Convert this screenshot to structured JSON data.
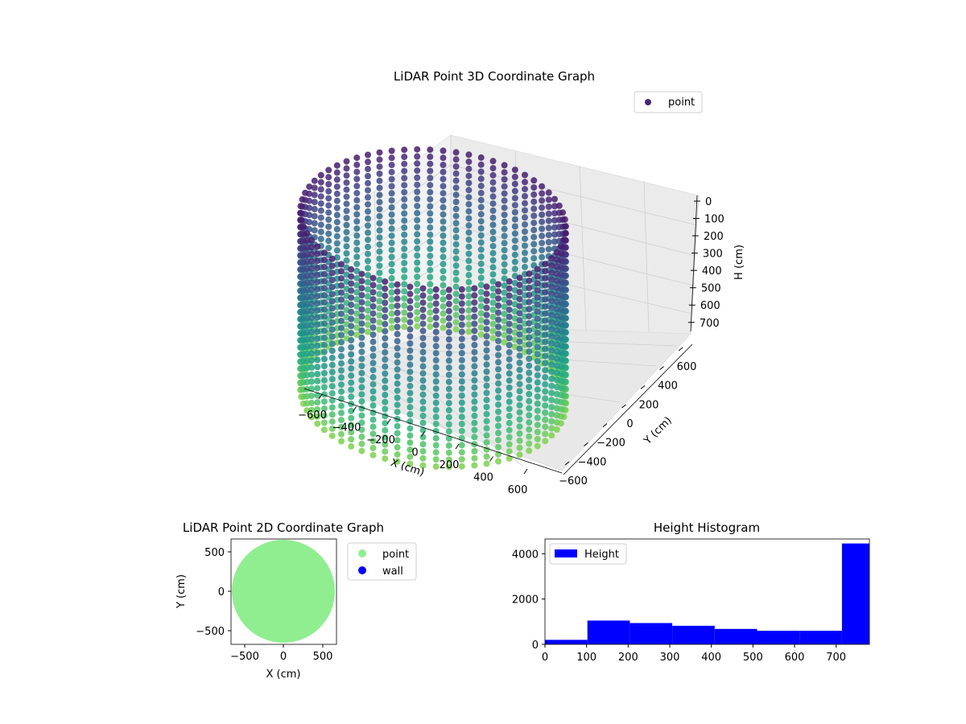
{
  "figure": {
    "title_3d": "LiDAR Point 3D Coordinate Graph",
    "title_2d": "LiDAR Point 2D Coordinate Graph",
    "title_hist": "Height Histogram"
  },
  "chart_data": [
    {
      "type": "scatter3d",
      "title": "LiDAR Point 3D Coordinate Graph",
      "xlabel": "X (cm)",
      "ylabel": "Y (cm)",
      "zlabel": "H (cm)",
      "x_ticks": [
        "−600",
        "−400",
        "−200",
        "0",
        "200",
        "400",
        "600"
      ],
      "y_ticks": [
        "−600",
        "−400",
        "−200",
        "0",
        "200",
        "400",
        "600"
      ],
      "z_ticks": [
        "0",
        "100",
        "200",
        "300",
        "400",
        "500",
        "600",
        "700"
      ],
      "xlim": [
        -650,
        650
      ],
      "ylim": [
        -650,
        650
      ],
      "zlim": [
        0,
        780
      ],
      "z_inverted": true,
      "legend": [
        {
          "label": "point",
          "color": "#482677"
        }
      ],
      "legend_position": "upper-right",
      "colormap": "viridis",
      "shape": "cylinder",
      "radius": 620,
      "height_range": [
        0,
        780
      ],
      "grid": true
    },
    {
      "type": "scatter",
      "title": "LiDAR Point 2D Coordinate Graph",
      "xlabel": "X (cm)",
      "ylabel": "Y (cm)",
      "x_ticks": [
        "−500",
        "0",
        "500"
      ],
      "y_ticks": [
        "500",
        "0",
        "−500"
      ],
      "xlim": [
        -680,
        680
      ],
      "ylim": [
        -680,
        680
      ],
      "series": [
        {
          "name": "point",
          "color": "#90ee90",
          "shape": "disk",
          "radius": 620
        },
        {
          "name": "wall",
          "color": "#0000ff",
          "values": []
        }
      ],
      "legend_position": "outside-right"
    },
    {
      "type": "bar",
      "title": "Height Histogram",
      "xlabel": "",
      "ylabel": "",
      "x_ticks": [
        "0",
        "100",
        "200",
        "300",
        "400",
        "500",
        "600",
        "700"
      ],
      "y_ticks": [
        "0",
        "2000",
        "4000"
      ],
      "xlim": [
        0,
        780
      ],
      "ylim": [
        0,
        4650
      ],
      "bin_edges": [
        0,
        102,
        204,
        306,
        408,
        510,
        612,
        714,
        780
      ],
      "values": [
        200,
        1050,
        940,
        820,
        680,
        600,
        600,
        4450
      ],
      "series": [
        {
          "name": "Height",
          "color": "#0000ff"
        }
      ],
      "legend_position": "upper-left"
    }
  ]
}
